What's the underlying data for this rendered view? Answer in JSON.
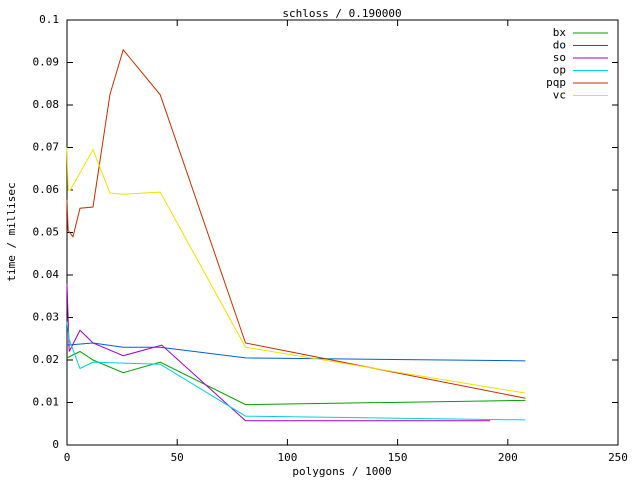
{
  "chart_data": {
    "type": "line",
    "title": "schloss / 0.190000",
    "x_label": "polygons / 1000",
    "y_label": "time / millisec",
    "xlim": [
      0,
      250
    ],
    "xticks": [
      0,
      50,
      100,
      150,
      200,
      250
    ],
    "ylim": [
      0,
      0.1
    ],
    "yticks": [
      0,
      0.01,
      0.02,
      0.03,
      0.04,
      0.05,
      0.06,
      0.07,
      0.08,
      0.09,
      0.1
    ],
    "legend": "top-right",
    "series": [
      {
        "name": "bx",
        "color": "#00a000",
        "x": [
          0,
          5.9,
          11.8,
          25.5,
          42.3,
          81,
          208
        ],
        "values": [
          0.0205,
          0.022,
          0.02,
          0.017,
          0.0195,
          0.0095,
          0.0105
        ]
      },
      {
        "name": "do",
        "color": "#0060d0",
        "x": [
          0,
          11.8,
          25.5,
          42.3,
          81,
          208
        ],
        "values": [
          0.0235,
          0.024,
          0.023,
          0.023,
          0.0205,
          0.0198
        ]
      },
      {
        "name": "so",
        "color": "#a000c0",
        "x": [
          0,
          1,
          5.9,
          11.8,
          25.5,
          43,
          81,
          192
        ],
        "values": [
          0.038,
          0.022,
          0.027,
          0.024,
          0.021,
          0.0235,
          0.0057,
          0.0057
        ]
      },
      {
        "name": "op",
        "color": "#00d0e0",
        "x": [
          0,
          1,
          5.9,
          11.8,
          42.3,
          81,
          208
        ],
        "values": [
          0.029,
          0.0248,
          0.018,
          0.0195,
          0.019,
          0.0068,
          0.0059
        ]
      },
      {
        "name": "pqp",
        "color": "#c03000",
        "x": [
          0,
          0.5,
          2.7,
          5.9,
          11.8,
          19.5,
          25.5,
          42.3,
          81,
          208
        ],
        "values": [
          0.0577,
          0.0505,
          0.049,
          0.0557,
          0.056,
          0.0825,
          0.093,
          0.0824,
          0.024,
          0.011
        ]
      },
      {
        "name": "vc",
        "color": "#f0e000",
        "x": [
          0,
          0.5,
          1.5,
          11.8,
          19.5,
          25.5,
          42.3,
          81,
          208
        ],
        "values": [
          0.07,
          0.06,
          0.06,
          0.0695,
          0.0593,
          0.059,
          0.0595,
          0.023,
          0.0122
        ]
      }
    ]
  }
}
